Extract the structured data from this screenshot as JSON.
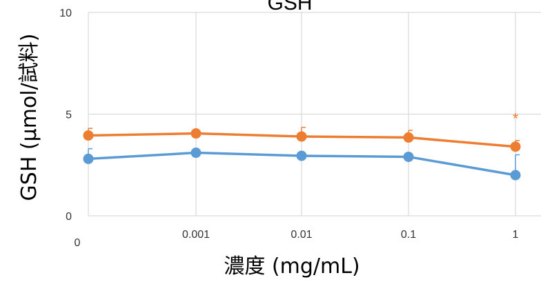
{
  "chart_data": {
    "type": "line",
    "title": "GSH",
    "xlabel": "濃度 (mg/mL)",
    "ylabel": "GSH (μmol/試料)",
    "categories": [
      "0",
      "0.001",
      "0.01",
      "0.1",
      "1"
    ],
    "ylim": [
      0,
      10
    ],
    "yticks": [
      "0",
      "5",
      "10"
    ],
    "grid": true,
    "legend": "none",
    "series": [
      {
        "color": "#5B9BD5",
        "values": [
          2.8,
          3.1,
          2.95,
          2.9,
          2.0
        ],
        "error": [
          0.5,
          0.05,
          0.05,
          0.05,
          1.0
        ]
      },
      {
        "color": "#ED7D31",
        "values": [
          3.95,
          4.05,
          3.9,
          3.85,
          3.4
        ],
        "error": [
          0.35,
          0.05,
          0.45,
          0.35,
          0.3
        ]
      }
    ],
    "annotations": [
      {
        "text": "*",
        "category": "1",
        "y": 4.8,
        "color": "#ED7D31"
      }
    ]
  }
}
